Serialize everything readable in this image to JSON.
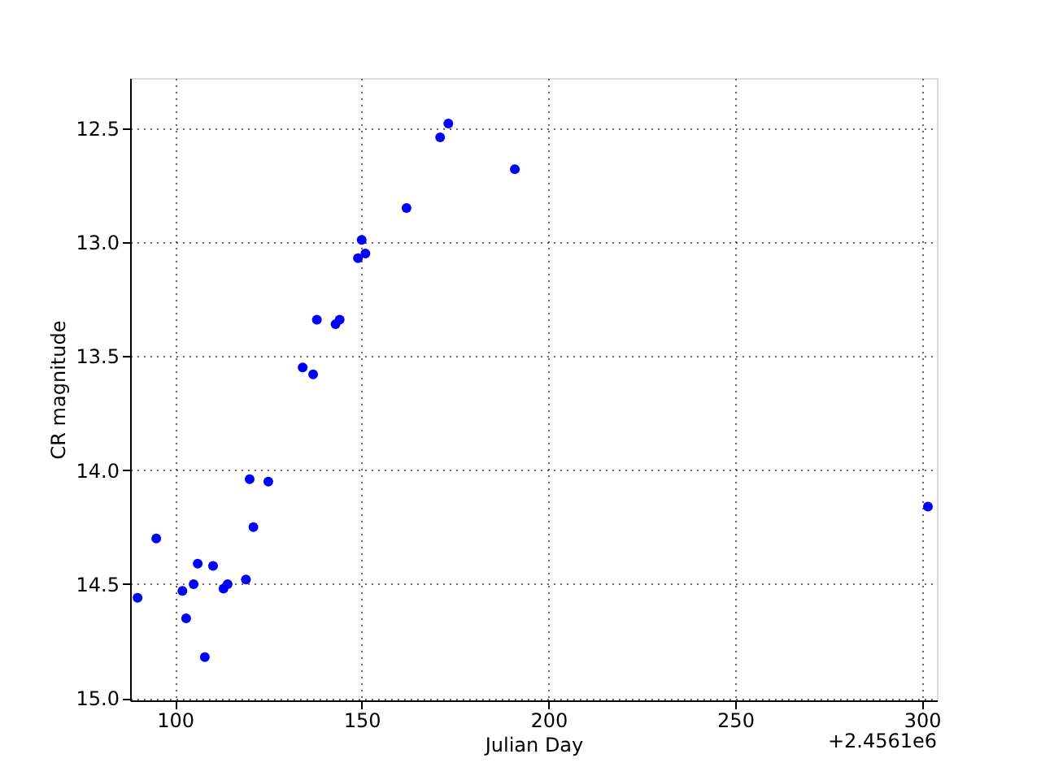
{
  "chart_data": {
    "type": "scatter",
    "xlabel": "Julian Day",
    "ylabel": "CR magnitude",
    "annotations": [
      "+2.4561e6"
    ],
    "x": [
      90.0,
      95.0,
      102.0,
      103.0,
      105.0,
      106.1,
      108.0,
      110.2,
      113.0,
      114.1,
      119.0,
      120.0,
      121.0,
      125.0,
      134.2,
      137.0,
      138.0,
      143.0,
      144.1,
      149.0,
      150.0,
      151.0,
      162.0,
      171.0,
      173.2,
      191.0,
      301.6
    ],
    "series": [
      {
        "color": "#0000ff",
        "values": [
          14.56,
          14.3,
          14.53,
          14.65,
          14.5,
          14.41,
          14.82,
          14.42,
          14.52,
          14.5,
          14.48,
          14.04,
          14.25,
          14.05,
          13.55,
          13.58,
          13.34,
          13.36,
          13.34,
          13.07,
          12.99,
          13.05,
          12.85,
          12.54,
          12.48,
          12.68,
          14.16
        ]
      }
    ],
    "xlim": [
      88,
      304
    ],
    "xticks": [
      100,
      150,
      200,
      250,
      300
    ],
    "ylim": [
      15.01,
      12.28
    ],
    "yticks": [
      {
        "value": 12.5,
        "label": "12.5"
      },
      {
        "value": 13,
        "label": "13.0"
      },
      {
        "value": 13.5,
        "label": "13.5"
      },
      {
        "value": 14,
        "label": "14.0"
      },
      {
        "value": 14.5,
        "label": "14.5"
      },
      {
        "value": 15,
        "label": "15.0"
      }
    ],
    "grid": true,
    "marker": "circle"
  }
}
